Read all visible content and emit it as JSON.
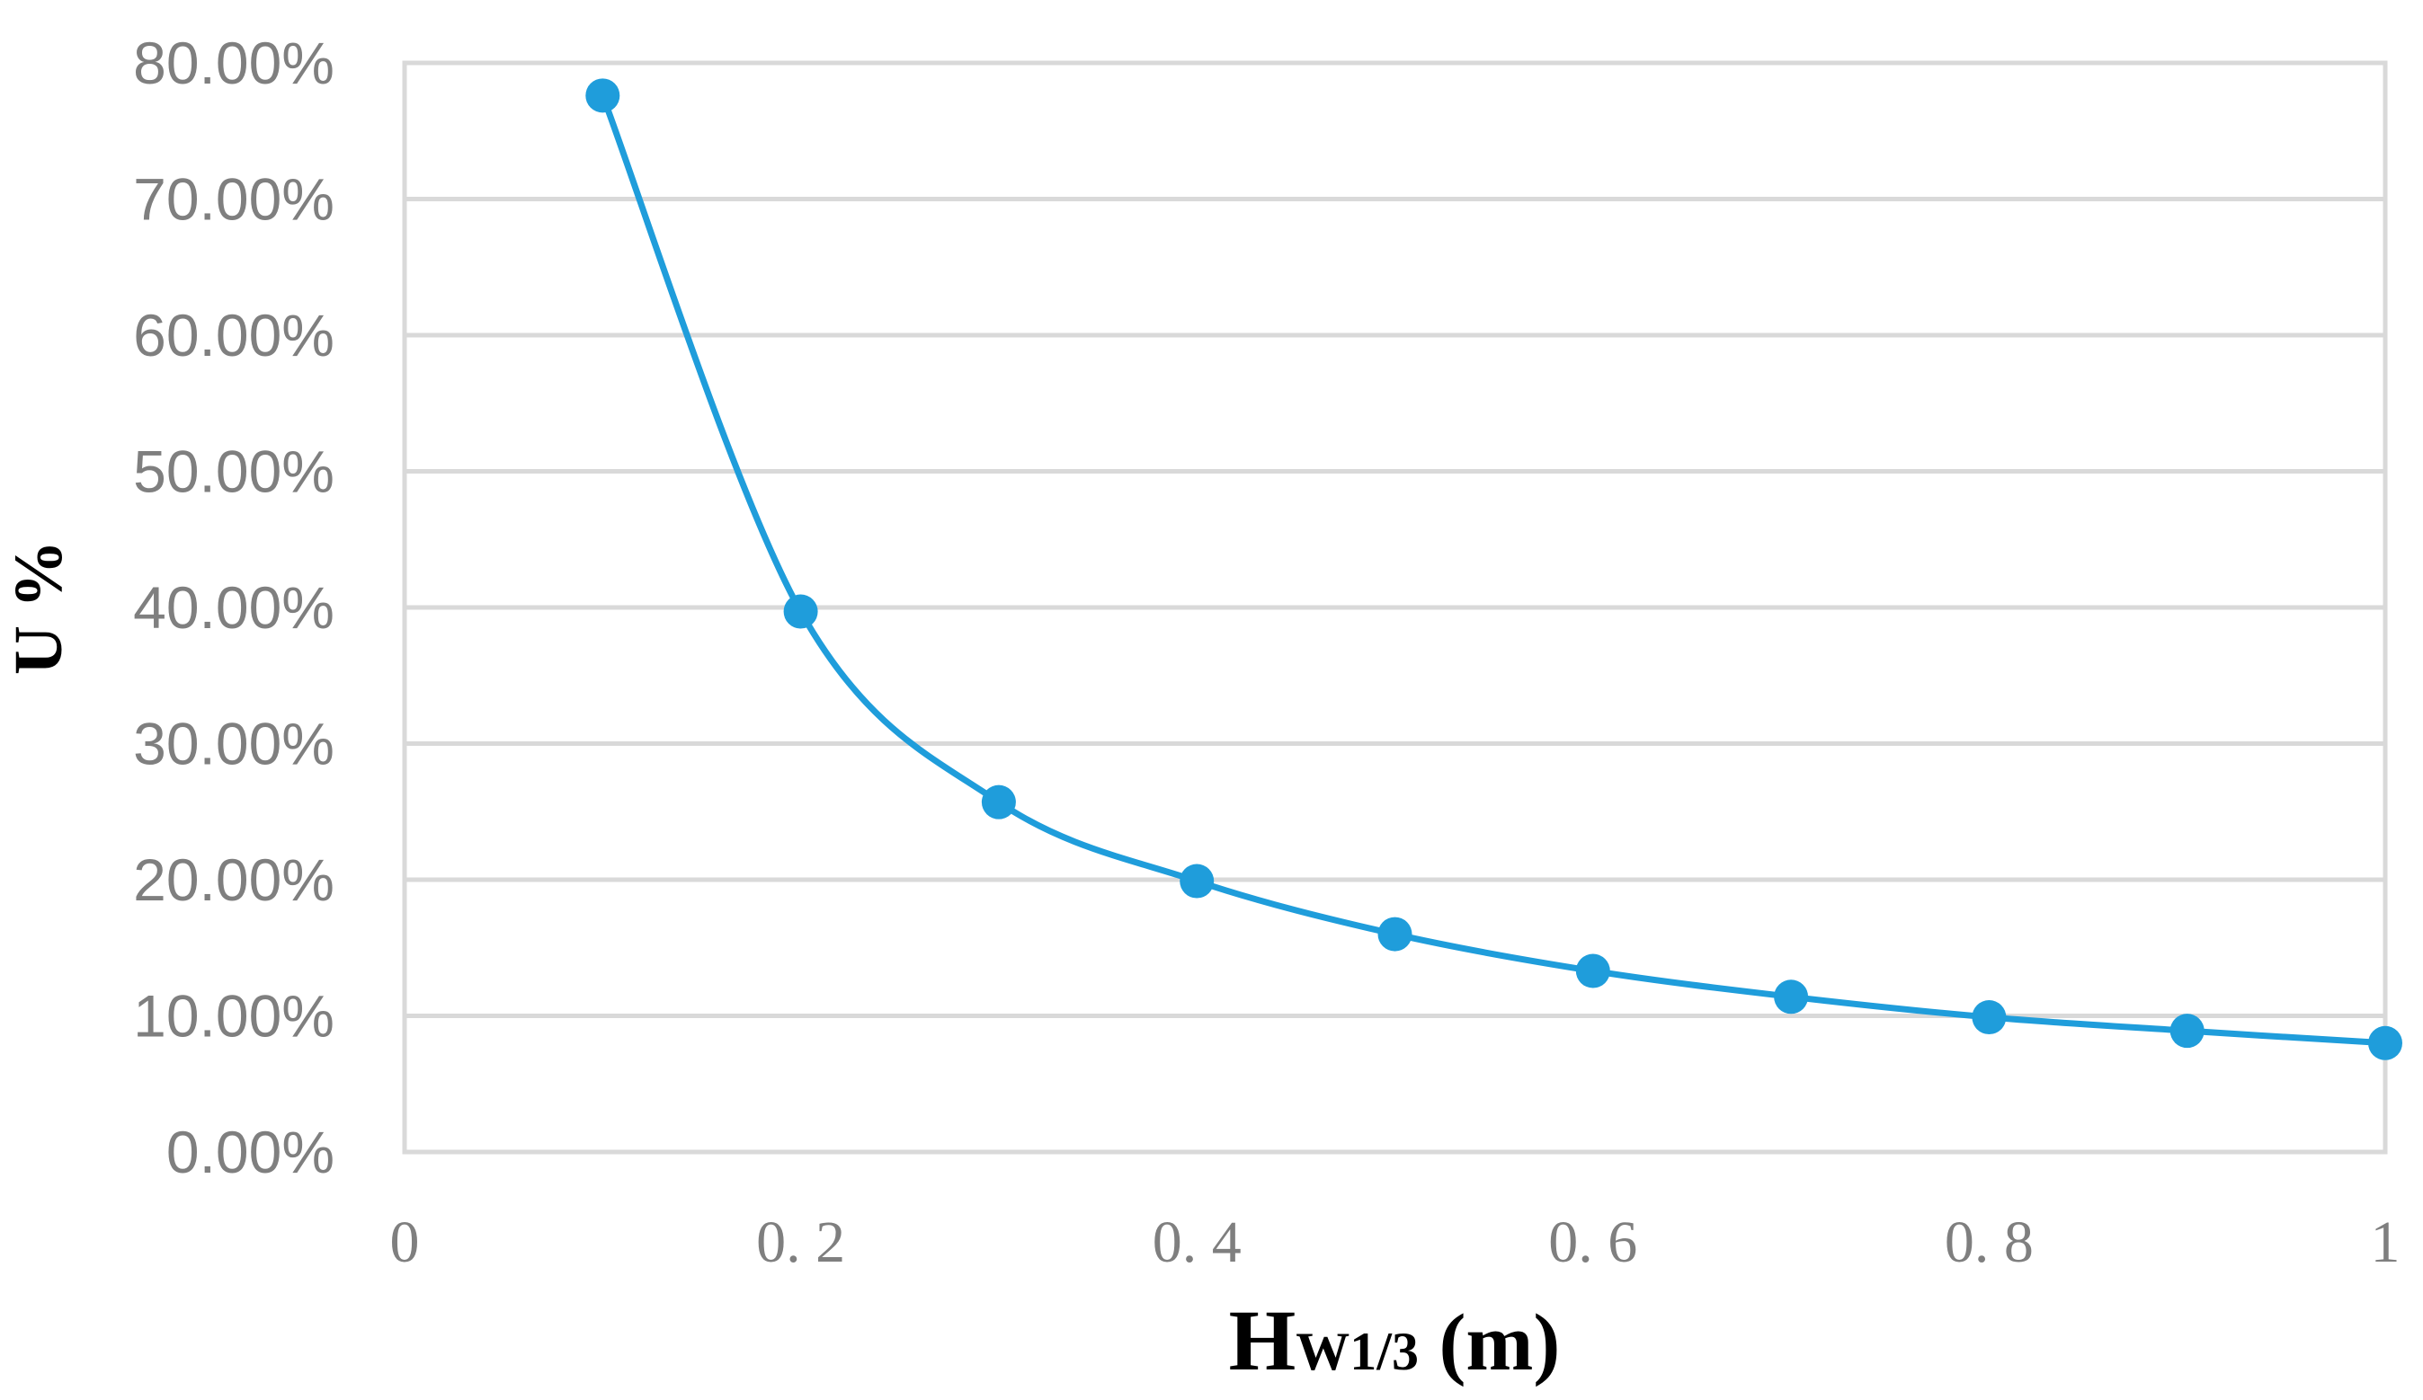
{
  "chart_data": {
    "type": "scatter",
    "series": [
      {
        "x": [
          0.1,
          0.2,
          0.3,
          0.4,
          0.5,
          0.6,
          0.7,
          0.8,
          0.9,
          1.0
        ],
        "y": [
          0.776,
          0.397,
          0.257,
          0.199,
          0.16,
          0.133,
          0.114,
          0.099,
          0.089,
          0.08
        ],
        "color": "#1f9ddb",
        "marker": "circle",
        "smooth_line": true
      }
    ],
    "xlim": [
      0,
      1
    ],
    "ylim": [
      0,
      0.8
    ],
    "xticks": [
      0,
      0.2,
      0.4,
      0.6,
      0.8,
      1
    ],
    "xtick_labels": [
      "0",
      "0. 2",
      "0. 4",
      "0. 6",
      "0. 8",
      "1"
    ],
    "yticks": [
      0,
      0.1,
      0.2,
      0.3,
      0.4,
      0.5,
      0.6,
      0.7,
      0.8
    ],
    "ytick_labels": [
      "0.00%",
      "10.00%",
      "20.00%",
      "30.00%",
      "40.00%",
      "50.00%",
      "60.00%",
      "70.00%",
      "80.00%"
    ],
    "xlabel": {
      "main": "H",
      "subscript": "W1/3",
      "unit": " (m)"
    },
    "ylabel": "U %",
    "grid": true,
    "legend": "none",
    "gridline_color": "#d9d9d9"
  }
}
